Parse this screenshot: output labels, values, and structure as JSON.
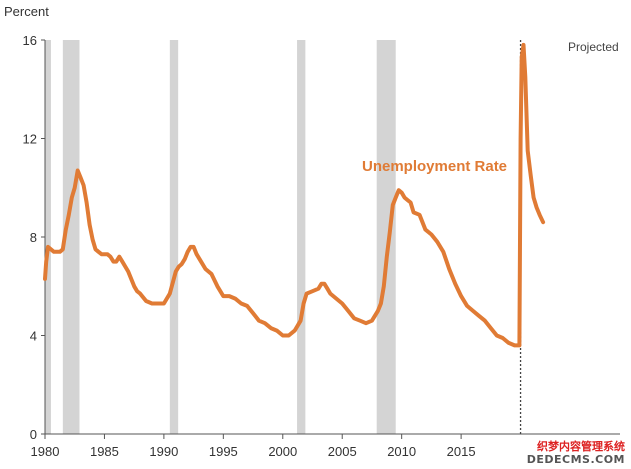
{
  "chart_data": {
    "type": "line",
    "ylabel": "Percent",
    "xlim": [
      1980,
      2025
    ],
    "ylim": [
      0,
      16
    ],
    "x_ticks": [
      "1980",
      "1985",
      "1990",
      "1995",
      "2000",
      "2005",
      "2010",
      "2015"
    ],
    "y_ticks": [
      "0",
      "4",
      "8",
      "12",
      "16"
    ],
    "colors": {
      "series": "#E07B35",
      "recession": "#D4D4D4",
      "axis": "#555555",
      "projection": "#444444"
    },
    "recessions": [
      [
        1980.0,
        1980.5
      ],
      [
        1981.5,
        1982.9
      ],
      [
        1990.5,
        1991.2
      ],
      [
        2001.2,
        2001.9
      ],
      [
        2007.9,
        2009.5
      ]
    ],
    "projection_start": 2020.0,
    "annotations": [
      {
        "text": "Projected"
      }
    ],
    "series": [
      {
        "name": "Unemployment Rate",
        "x": [
          1980.0,
          1980.1,
          1980.25,
          1980.5,
          1980.75,
          1981.0,
          1981.25,
          1981.5,
          1981.75,
          1982.0,
          1982.25,
          1982.5,
          1982.75,
          1983.0,
          1983.25,
          1983.5,
          1983.75,
          1984.0,
          1984.25,
          1984.5,
          1984.75,
          1985.0,
          1985.25,
          1985.5,
          1985.75,
          1986.0,
          1986.25,
          1986.5,
          1986.75,
          1987.0,
          1987.25,
          1987.5,
          1987.75,
          1988.0,
          1988.5,
          1989.0,
          1989.5,
          1990.0,
          1990.5,
          1991.0,
          1991.25,
          1991.5,
          1991.75,
          1992.0,
          1992.25,
          1992.5,
          1992.75,
          1993.0,
          1993.5,
          1994.0,
          1994.5,
          1995.0,
          1995.5,
          1996.0,
          1996.5,
          1997.0,
          1997.5,
          1998.0,
          1998.5,
          1999.0,
          1999.5,
          2000.0,
          2000.5,
          2001.0,
          2001.5,
          2001.75,
          2002.0,
          2002.5,
          2003.0,
          2003.25,
          2003.5,
          2003.75,
          2004.0,
          2004.5,
          2005.0,
          2005.5,
          2006.0,
          2006.5,
          2007.0,
          2007.5,
          2008.0,
          2008.25,
          2008.5,
          2008.75,
          2009.0,
          2009.25,
          2009.5,
          2009.75,
          2010.0,
          2010.25,
          2010.5,
          2010.75,
          2011.0,
          2011.5,
          2012.0,
          2012.5,
          2013.0,
          2013.5,
          2014.0,
          2014.5,
          2015.0,
          2015.5,
          2016.0,
          2016.5,
          2017.0,
          2017.5,
          2018.0,
          2018.5,
          2019.0,
          2019.5,
          2019.9,
          2020.0,
          2020.1,
          2020.25,
          2020.4,
          2020.6,
          2020.85,
          2021.1,
          2021.35,
          2021.6,
          2021.9
        ],
        "values": [
          6.3,
          7.0,
          7.6,
          7.5,
          7.4,
          7.4,
          7.4,
          7.5,
          8.3,
          8.9,
          9.6,
          10.0,
          10.7,
          10.4,
          10.1,
          9.4,
          8.5,
          7.9,
          7.5,
          7.4,
          7.3,
          7.3,
          7.3,
          7.2,
          7.0,
          7.0,
          7.2,
          7.0,
          6.8,
          6.6,
          6.3,
          6.0,
          5.8,
          5.7,
          5.4,
          5.3,
          5.3,
          5.3,
          5.7,
          6.6,
          6.8,
          6.9,
          7.1,
          7.4,
          7.6,
          7.6,
          7.3,
          7.1,
          6.7,
          6.5,
          6.0,
          5.6,
          5.6,
          5.5,
          5.3,
          5.2,
          4.9,
          4.6,
          4.5,
          4.3,
          4.2,
          4.0,
          4.0,
          4.2,
          4.6,
          5.3,
          5.7,
          5.8,
          5.9,
          6.1,
          6.1,
          5.9,
          5.7,
          5.5,
          5.3,
          5.0,
          4.7,
          4.6,
          4.5,
          4.6,
          5.0,
          5.3,
          6.0,
          7.2,
          8.2,
          9.3,
          9.6,
          9.9,
          9.8,
          9.6,
          9.5,
          9.4,
          9.0,
          8.9,
          8.3,
          8.1,
          7.8,
          7.4,
          6.7,
          6.1,
          5.6,
          5.2,
          5.0,
          4.8,
          4.6,
          4.3,
          4.0,
          3.9,
          3.7,
          3.6,
          3.6,
          12.0,
          15.3,
          15.8,
          14.5,
          11.5,
          10.5,
          9.6,
          9.2,
          8.9,
          8.6
        ]
      }
    ]
  },
  "watermark": {
    "line1": "织梦内容管理系统",
    "line2": "DEDECMS.COM"
  }
}
